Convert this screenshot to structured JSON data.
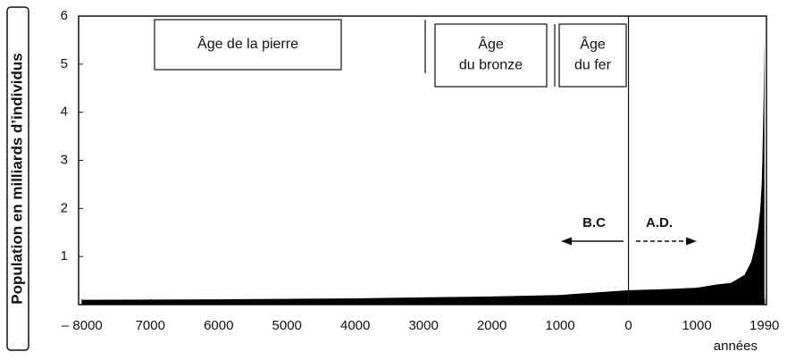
{
  "chart_data": {
    "type": "area",
    "ylabel": "Population en milliards d’individus",
    "xlabel": "années",
    "x": [
      -8000,
      -6000,
      -4000,
      -3000,
      -2000,
      -1000,
      0,
      500,
      1000,
      1300,
      1500,
      1700,
      1800,
      1850,
      1900,
      1930,
      1950,
      1960,
      1970,
      1980,
      1990
    ],
    "values": [
      0.1,
      0.11,
      0.13,
      0.15,
      0.17,
      0.2,
      0.3,
      0.32,
      0.35,
      0.42,
      0.45,
      0.62,
      0.9,
      1.2,
      1.6,
      2.0,
      2.5,
      3.0,
      3.7,
      4.4,
      5.6
    ],
    "color": "#000000",
    "xlim": [
      -8050,
      2020
    ],
    "ylim": [
      0,
      6
    ],
    "yticks": [
      1,
      2,
      3,
      4,
      5,
      6
    ],
    "xticks": [
      {
        "value": -8000,
        "label": "– 8000"
      },
      {
        "value": -7000,
        "label": "7000"
      },
      {
        "value": -6000,
        "label": "6000"
      },
      {
        "value": -5000,
        "label": "5000"
      },
      {
        "value": -4000,
        "label": "4000"
      },
      {
        "value": -3000,
        "label": "3000"
      },
      {
        "value": -2000,
        "label": "2000"
      },
      {
        "value": -1000,
        "label": "1000"
      },
      0,
      1000,
      1990
    ],
    "periods": [
      [
        "Âge de la pierre"
      ],
      [
        "Âge",
        "du bronze"
      ],
      [
        "Âge",
        "du fer"
      ]
    ],
    "annotations": [
      "B.C",
      "A.D."
    ]
  }
}
